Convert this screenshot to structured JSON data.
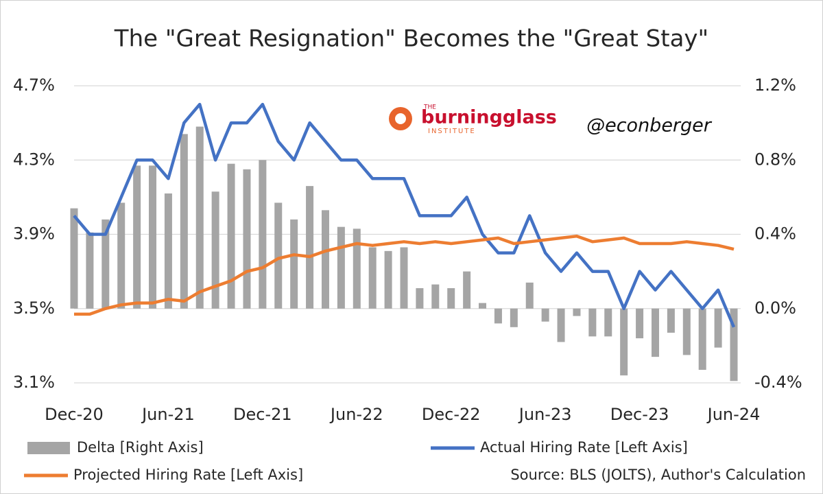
{
  "chart_data": {
    "type": "combo",
    "title": "The \"Great Resignation\" Becomes the \"Great Stay\"",
    "source": "Source: BLS (JOLTS), Author's Calculation",
    "categories": [
      "Dec-20",
      null,
      null,
      null,
      null,
      null,
      "Jun-21",
      null,
      null,
      null,
      null,
      null,
      "Dec-21",
      null,
      null,
      null,
      null,
      null,
      "Jun-22",
      null,
      null,
      null,
      null,
      null,
      "Dec-22",
      null,
      null,
      null,
      null,
      null,
      "Jun-23",
      null,
      null,
      null,
      null,
      null,
      "Dec-23",
      null,
      null,
      null,
      null,
      null,
      "Jun-24"
    ],
    "ylim": [
      3.1,
      4.7
    ],
    "yticks": [
      {
        "value": 3.1,
        "label": "3.1%"
      },
      {
        "value": 3.5,
        "label": "3.5%"
      },
      {
        "value": 3.9,
        "label": "3.9%"
      },
      {
        "value": 4.3,
        "label": "4.3%"
      },
      {
        "value": 4.7,
        "label": "4.7%"
      }
    ],
    "y2lim": [
      -0.4,
      1.2
    ],
    "y2ticks": [
      {
        "value": -0.4,
        "label": "-0.4%"
      },
      {
        "value": 0,
        "label": "0.0%"
      },
      {
        "value": 0.4,
        "label": "0.4%"
      },
      {
        "value": 0.8,
        "label": "0.8%"
      },
      {
        "value": 1.2,
        "label": "1.2%"
      }
    ],
    "grid": true,
    "series": [
      {
        "name": "Delta [Right Axis]",
        "type": "bar",
        "axis": "y2",
        "color": "#a5a5a5",
        "values": [
          0.54,
          0.41,
          0.48,
          0.57,
          0.77,
          0.77,
          0.62,
          0.94,
          0.98,
          0.63,
          0.78,
          0.75,
          0.8,
          0.57,
          0.48,
          0.66,
          0.53,
          0.44,
          0.43,
          0.33,
          0.31,
          0.33,
          0.11,
          0.13,
          0.11,
          0.2,
          0.03,
          -0.08,
          -0.1,
          0.14,
          -0.07,
          -0.18,
          -0.04,
          -0.15,
          -0.15,
          -0.36,
          -0.16,
          -0.26,
          -0.13,
          -0.25,
          -0.33,
          -0.21,
          -0.39
        ]
      },
      {
        "name": "Actual Hiring Rate [Left Axis]",
        "type": "line",
        "color": "#4472c4",
        "values": [
          4.0,
          3.9,
          3.9,
          4.1,
          4.3,
          4.3,
          4.2,
          4.5,
          4.6,
          4.3,
          4.5,
          4.5,
          4.6,
          4.4,
          4.3,
          4.5,
          4.4,
          4.3,
          4.3,
          4.2,
          4.2,
          4.2,
          4.0,
          4.0,
          4.0,
          4.1,
          3.9,
          3.8,
          3.8,
          4.0,
          3.8,
          3.7,
          3.8,
          3.7,
          3.7,
          3.5,
          3.7,
          3.6,
          3.7,
          3.6,
          3.5,
          3.6,
          3.4
        ]
      },
      {
        "name": "Projected Hiring Rate [Left Axis]",
        "type": "line",
        "color": "#ed7d31",
        "values": [
          3.47,
          3.47,
          3.5,
          3.52,
          3.53,
          3.53,
          3.55,
          3.54,
          3.59,
          3.62,
          3.65,
          3.7,
          3.72,
          3.77,
          3.79,
          3.78,
          3.81,
          3.83,
          3.85,
          3.84,
          3.85,
          3.86,
          3.85,
          3.86,
          3.85,
          3.86,
          3.87,
          3.88,
          3.85,
          3.86,
          3.87,
          3.88,
          3.89,
          3.86,
          3.87,
          3.88,
          3.85,
          3.85,
          3.85,
          3.86,
          3.85,
          3.84,
          3.82
        ]
      }
    ]
  },
  "branding": {
    "logo_prefix": "THE",
    "logo_name": "burningglass",
    "logo_suffix": "INSTITUTE",
    "handle": "@econberger"
  }
}
